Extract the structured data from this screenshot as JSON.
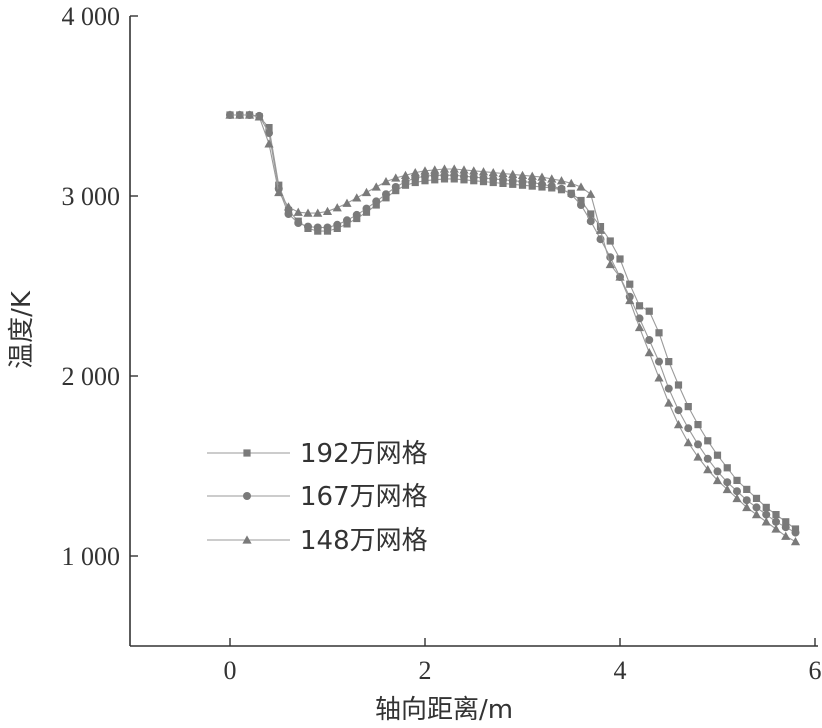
{
  "chart_data": {
    "type": "line",
    "title": "",
    "xlabel": "轴向距离/m",
    "ylabel": "温度/K",
    "xlim": [
      -1,
      6
    ],
    "ylim": [
      500,
      4000
    ],
    "xticks": [
      0,
      2,
      4,
      6
    ],
    "xtick_labels": [
      "0",
      "2",
      "4",
      "6"
    ],
    "yticks": [
      1000,
      2000,
      3000,
      4000
    ],
    "ytick_labels": [
      "1 000",
      "2 000",
      "3 000",
      "4 000"
    ],
    "grid": false,
    "legend_position": "lower-left",
    "colors": {
      "line": "#9a9a9a",
      "marker": "#7a7a7a",
      "axis": "#333333"
    },
    "series": [
      {
        "name": "192万网格",
        "marker": "square",
        "x": [
          0.0,
          0.1,
          0.2,
          0.3,
          0.4,
          0.5,
          0.6,
          0.7,
          0.8,
          0.9,
          1.0,
          1.1,
          1.2,
          1.3,
          1.4,
          1.5,
          1.6,
          1.7,
          1.8,
          1.9,
          2.0,
          2.1,
          2.2,
          2.3,
          2.4,
          2.5,
          2.6,
          2.7,
          2.8,
          2.9,
          3.0,
          3.1,
          3.2,
          3.3,
          3.4,
          3.5,
          3.6,
          3.7,
          3.8,
          3.9,
          4.0,
          4.1,
          4.2,
          4.3,
          4.4,
          4.5,
          4.6,
          4.7,
          4.8,
          4.9,
          5.0,
          5.1,
          5.2,
          5.3,
          5.4,
          5.5,
          5.6,
          5.7,
          5.8
        ],
        "y": [
          3450,
          3450,
          3450,
          3440,
          3380,
          3060,
          2920,
          2860,
          2820,
          2805,
          2805,
          2820,
          2845,
          2875,
          2910,
          2950,
          2990,
          3030,
          3060,
          3075,
          3085,
          3090,
          3095,
          3095,
          3090,
          3085,
          3080,
          3075,
          3070,
          3065,
          3060,
          3055,
          3050,
          3045,
          3035,
          3015,
          2975,
          2900,
          2830,
          2750,
          2650,
          2510,
          2390,
          2360,
          2240,
          2080,
          1950,
          1830,
          1730,
          1640,
          1560,
          1490,
          1420,
          1370,
          1320,
          1270,
          1230,
          1190,
          1150
        ]
      },
      {
        "name": "167万网格",
        "marker": "circle",
        "x": [
          0.0,
          0.1,
          0.2,
          0.3,
          0.4,
          0.5,
          0.6,
          0.7,
          0.8,
          0.9,
          1.0,
          1.1,
          1.2,
          1.3,
          1.4,
          1.5,
          1.6,
          1.7,
          1.8,
          1.9,
          2.0,
          2.1,
          2.2,
          2.3,
          2.4,
          2.5,
          2.6,
          2.7,
          2.8,
          2.9,
          3.0,
          3.1,
          3.2,
          3.3,
          3.4,
          3.5,
          3.6,
          3.7,
          3.8,
          3.9,
          4.0,
          4.1,
          4.2,
          4.3,
          4.4,
          4.5,
          4.6,
          4.7,
          4.8,
          4.9,
          5.0,
          5.1,
          5.2,
          5.3,
          5.4,
          5.5,
          5.6,
          5.7,
          5.8
        ],
        "y": [
          3450,
          3450,
          3450,
          3445,
          3350,
          3040,
          2900,
          2850,
          2830,
          2825,
          2825,
          2840,
          2865,
          2895,
          2930,
          2970,
          3010,
          3050,
          3080,
          3100,
          3110,
          3115,
          3115,
          3115,
          3110,
          3105,
          3100,
          3095,
          3090,
          3085,
          3080,
          3075,
          3065,
          3055,
          3040,
          3010,
          2950,
          2860,
          2760,
          2660,
          2550,
          2440,
          2320,
          2200,
          2080,
          1930,
          1810,
          1710,
          1620,
          1540,
          1470,
          1410,
          1360,
          1310,
          1270,
          1230,
          1190,
          1160,
          1130
        ]
      },
      {
        "name": "148万网格",
        "marker": "triangle",
        "x": [
          0.0,
          0.1,
          0.2,
          0.3,
          0.4,
          0.5,
          0.6,
          0.7,
          0.8,
          0.9,
          1.0,
          1.1,
          1.2,
          1.3,
          1.4,
          1.5,
          1.6,
          1.7,
          1.8,
          1.9,
          2.0,
          2.1,
          2.2,
          2.3,
          2.4,
          2.5,
          2.6,
          2.7,
          2.8,
          2.9,
          3.0,
          3.1,
          3.2,
          3.3,
          3.4,
          3.5,
          3.6,
          3.7,
          3.8,
          3.9,
          4.0,
          4.1,
          4.2,
          4.3,
          4.4,
          4.5,
          4.6,
          4.7,
          4.8,
          4.9,
          5.0,
          5.1,
          5.2,
          5.3,
          5.4,
          5.5,
          5.6,
          5.7,
          5.8
        ],
        "y": [
          3450,
          3450,
          3450,
          3440,
          3290,
          3020,
          2940,
          2910,
          2905,
          2905,
          2915,
          2935,
          2960,
          2990,
          3020,
          3050,
          3080,
          3100,
          3115,
          3130,
          3140,
          3145,
          3150,
          3150,
          3145,
          3140,
          3135,
          3130,
          3125,
          3120,
          3115,
          3110,
          3105,
          3095,
          3085,
          3070,
          3050,
          3010,
          2810,
          2620,
          2550,
          2420,
          2270,
          2130,
          1990,
          1850,
          1730,
          1630,
          1550,
          1480,
          1420,
          1370,
          1320,
          1270,
          1230,
          1190,
          1150,
          1110,
          1080
        ]
      }
    ]
  }
}
